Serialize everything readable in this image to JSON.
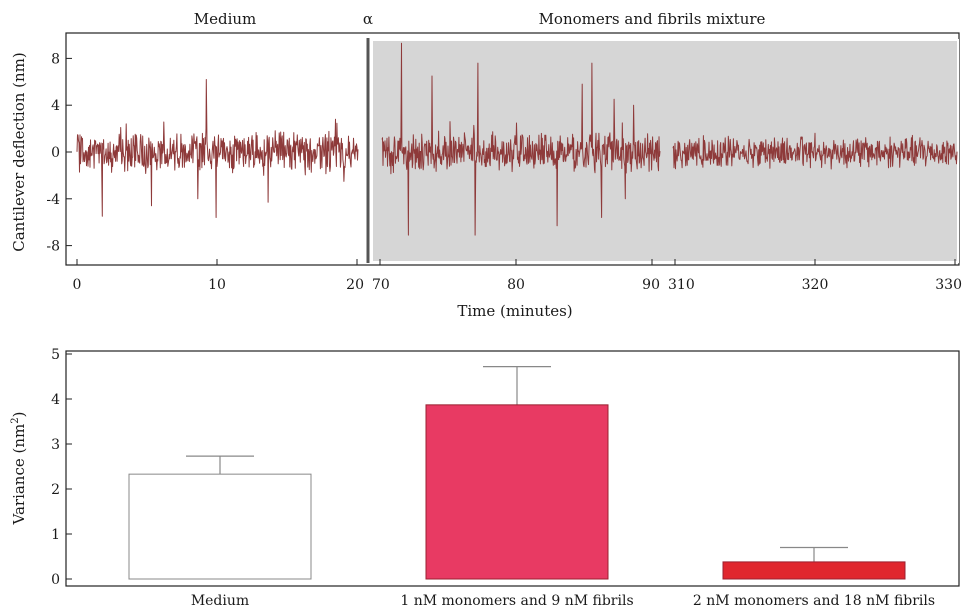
{
  "chart_data": [
    {
      "type": "line",
      "top_labels": [
        "Medium",
        "α",
        "Monomers and fibrils mixture"
      ],
      "xlabel": "Time (minutes)",
      "ylabel": "Cantilever deflection (nm)",
      "ylim": [
        -10,
        10
      ],
      "yticks": [
        "8",
        "4",
        "0",
        "-4",
        "-8"
      ],
      "ytick_values": [
        8,
        4,
        0,
        -4,
        -8
      ],
      "xticks": [
        "0",
        "10",
        "20",
        "70",
        "80",
        "90",
        "310",
        "320",
        "330"
      ],
      "segments": [
        {
          "x_range": [
            0,
            20
          ],
          "max_amplitude": 6,
          "spikes": [
            [
              1.8,
              -5.5
            ],
            [
              5.3,
              -4.6
            ],
            [
              9.2,
              6.2
            ],
            [
              9.9,
              -5.6
            ],
            [
              13.6,
              -4.3
            ],
            [
              8.6,
              -4.0
            ],
            [
              3.5,
              2.4
            ],
            [
              18.4,
              2.8
            ]
          ]
        },
        {
          "x_range": [
            70,
            90
          ],
          "shaded": true,
          "max_amplitude": 9.5,
          "spikes": [
            [
              71.4,
              9.3
            ],
            [
              71.9,
              -7.1
            ],
            [
              73.6,
              6.5
            ],
            [
              76.9,
              7.6
            ],
            [
              76.7,
              -7.1
            ],
            [
              82.6,
              -6.3
            ],
            [
              84.4,
              5.8
            ],
            [
              85.1,
              7.6
            ],
            [
              85.8,
              -5.6
            ],
            [
              86.7,
              4.5
            ],
            [
              88.1,
              4.0
            ],
            [
              87.5,
              -4.0
            ]
          ]
        },
        {
          "x_range": [
            310,
            330
          ],
          "shaded": true,
          "max_amplitude": 1.3,
          "spikes": [
            [
              320,
              1.6
            ]
          ]
        }
      ],
      "series_color": "#8e3a3a"
    },
    {
      "type": "bar",
      "categories": [
        "Medium",
        "1 nM monomers and 9 nM fibrils",
        "2 nM monomers and 18 nM fibrils"
      ],
      "values": [
        2.33,
        3.87,
        0.38
      ],
      "errors": [
        0.4,
        0.85,
        0.32
      ],
      "colors": [
        "#ffffff",
        "#e83a63",
        "#e0262e"
      ],
      "ylabel": "Variance (nm²)",
      "ylabel_base": "Variance (nm",
      "ylabel_sup": "2",
      "ylabel_end": ")",
      "ylim": [
        0,
        5
      ],
      "yticks": [
        "0",
        "1",
        "2",
        "3",
        "4",
        "5"
      ],
      "ytick_values": [
        0,
        1,
        2,
        3,
        4,
        5
      ]
    }
  ]
}
